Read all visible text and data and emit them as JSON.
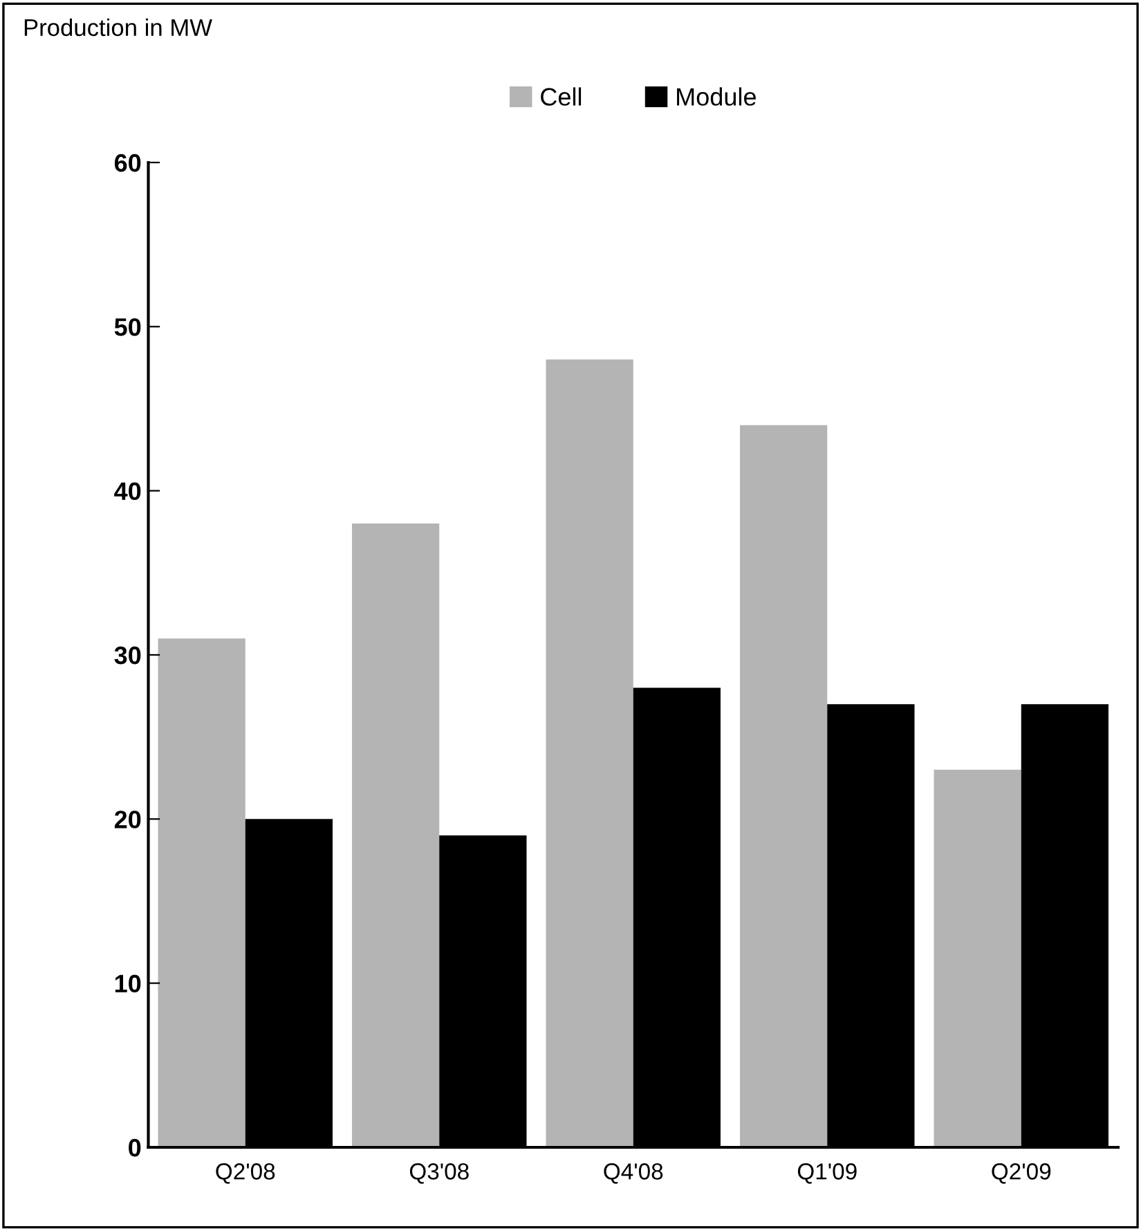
{
  "chart_data": {
    "type": "bar",
    "title": "Production in MW",
    "categories": [
      "Q2'08",
      "Q3'08",
      "Q4'08",
      "Q1'09",
      "Q2'09"
    ],
    "series": [
      {
        "name": "Cell",
        "color": "#b4b4b4",
        "values": [
          31,
          38,
          48,
          44,
          23
        ]
      },
      {
        "name": "Module",
        "color": "#000000",
        "values": [
          20,
          19,
          28,
          27,
          27
        ]
      }
    ],
    "ylim": [
      0,
      60
    ],
    "yticks": [
      0,
      10,
      20,
      30,
      40,
      50,
      60
    ],
    "grid": false,
    "legend": "top"
  }
}
